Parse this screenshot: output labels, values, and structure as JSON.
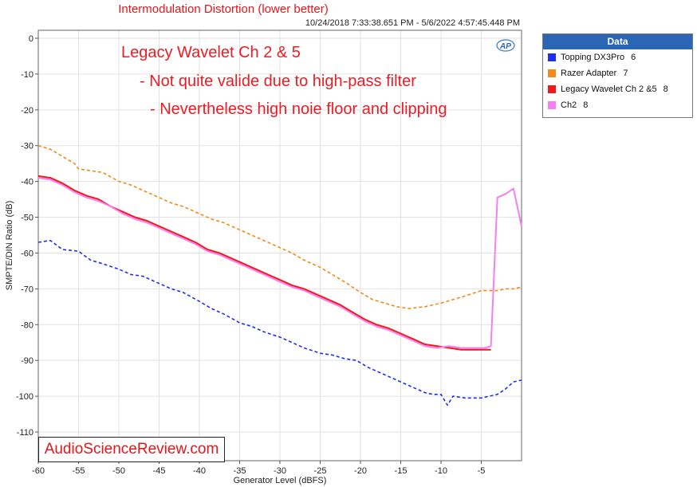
{
  "chart_data": {
    "type": "line",
    "title": "Intermodulation Distortion (lower better)",
    "subtitle": "10/24/2018 7:33:38.651 PM - 5/6/2022 4:57:45.448 PM",
    "xlabel": "Generator Level (dBFS)",
    "ylabel": "SMPTE/DIN Ratio (dB)",
    "xlim": [
      -60,
      0
    ],
    "ylim": [
      -115,
      2
    ],
    "xticks": [
      "-60",
      "-55",
      "-50",
      "-45",
      "-40",
      "-35",
      "-30",
      "-25",
      "-20",
      "-15",
      "-10",
      "-5"
    ],
    "yticks": [
      "0",
      "-10",
      "-20",
      "-30",
      "-40",
      "-50",
      "-60",
      "-70",
      "-80",
      "-90",
      "-100",
      "-110"
    ],
    "grid": true,
    "legend_title": "Data",
    "legend_placement": "right",
    "annotations": [
      "Legacy Wavelet Ch 2 & 5",
      "- Not quite valide due to high-pass filter",
      "- Nevertheless high noie floor and clipping"
    ],
    "logo": "AP",
    "watermark": "AudioScienceReview.com",
    "series": [
      {
        "name": "Topping DX3Pro",
        "num": "6",
        "color": "#1f2ff0",
        "dashed": true,
        "x": [
          -60,
          -58.5,
          -57,
          -55,
          -53.5,
          -52,
          -50,
          -48.5,
          -47,
          -45,
          -43.5,
          -42,
          -40,
          -38.5,
          -37,
          -35,
          -33.5,
          -32,
          -30,
          -28.5,
          -27,
          -25,
          -23.5,
          -22,
          -20.5,
          -19,
          -17,
          -15,
          -13.5,
          -12,
          -11,
          -10,
          -9.2,
          -8.5,
          -7,
          -5,
          -4,
          -3,
          -2,
          -1,
          0
        ],
        "y": [
          -57,
          -56.5,
          -59,
          -59.5,
          -62,
          -63,
          -64.5,
          -66,
          -66.5,
          -68.5,
          -70,
          -71,
          -73.5,
          -75.5,
          -77,
          -79.5,
          -80.5,
          -82,
          -83.5,
          -85,
          -86.5,
          -88,
          -88.5,
          -89.5,
          -90,
          -92,
          -94,
          -96,
          -97.5,
          -99,
          -99.5,
          -99.5,
          -102.5,
          -100,
          -100.5,
          -100.5,
          -100,
          -99.5,
          -98,
          -96,
          -95.5
        ]
      },
      {
        "name": "Razer Adapter",
        "num": "7",
        "color": "#f28a1a",
        "dashed": true,
        "x": [
          -60,
          -58.5,
          -57,
          -55.5,
          -55,
          -53.5,
          -52,
          -50,
          -48.5,
          -47,
          -45,
          -43.5,
          -42,
          -40,
          -38.5,
          -37,
          -35,
          -33.5,
          -32,
          -30,
          -28.5,
          -27,
          -25,
          -23.5,
          -22,
          -20,
          -18.5,
          -17,
          -15.5,
          -14,
          -12,
          -10,
          -8.5,
          -7,
          -5,
          -3,
          -2,
          -1,
          0
        ],
        "y": [
          -30,
          -31,
          -33,
          -35,
          -36.5,
          -37,
          -37.5,
          -40,
          -41,
          -42.5,
          -44.5,
          -46,
          -47,
          -49,
          -50.5,
          -51.5,
          -53.5,
          -55,
          -56.5,
          -58.5,
          -60,
          -62,
          -64,
          -66,
          -68,
          -71,
          -73,
          -74,
          -75,
          -75.5,
          -75,
          -74,
          -73,
          -72,
          -70.5,
          -70.5,
          -70,
          -70,
          -69.5
        ]
      },
      {
        "name": "Legacy Wavelet Ch 2 &5",
        "num": "8",
        "color": "#f01919",
        "dashed": false,
        "x": [
          -60,
          -58.5,
          -57,
          -55.5,
          -54,
          -52.5,
          -51,
          -49.5,
          -48,
          -46.5,
          -45,
          -43.5,
          -42,
          -40.5,
          -39,
          -37.5,
          -36,
          -34.5,
          -33,
          -31.5,
          -30,
          -28.5,
          -27,
          -25.5,
          -24,
          -22.5,
          -21,
          -19.5,
          -18,
          -16.5,
          -15,
          -13.5,
          -12,
          -10.5,
          -9,
          -7.5,
          -6,
          -4.5,
          -3.8
        ],
        "y": [
          -38.5,
          -39,
          -40.5,
          -42.5,
          -44,
          -45,
          -47,
          -48.5,
          -50,
          -51,
          -52.5,
          -54,
          -55.5,
          -57,
          -59,
          -60,
          -61.5,
          -63,
          -64.5,
          -66,
          -67.5,
          -69,
          -70,
          -71.5,
          -73,
          -74.5,
          -76.5,
          -78.5,
          -80,
          -81,
          -82.5,
          -84,
          -85.5,
          -86,
          -86.5,
          -87,
          -87,
          -87,
          -87
        ]
      },
      {
        "name": "Ch2",
        "num": "8",
        "color": "#f77ef2",
        "dashed": false,
        "x": [
          -60,
          -58.5,
          -57,
          -55.5,
          -54,
          -52.5,
          -51,
          -49.5,
          -48,
          -46.5,
          -45,
          -43.5,
          -42,
          -40.5,
          -39,
          -37.5,
          -36,
          -34.5,
          -33,
          -31.5,
          -30,
          -28.5,
          -27,
          -25.5,
          -24,
          -22.5,
          -21,
          -19.5,
          -18,
          -16.5,
          -15,
          -13.5,
          -12,
          -10.5,
          -9,
          -7.5,
          -6,
          -4.5,
          -3.8,
          -3,
          -2,
          -1,
          0
        ],
        "y": [
          -39,
          -39.5,
          -41,
          -43,
          -44.5,
          -45.5,
          -47,
          -49,
          -50.5,
          -51.5,
          -53,
          -54.5,
          -56,
          -57.5,
          -59.5,
          -60.5,
          -62,
          -63.5,
          -65,
          -66.5,
          -68,
          -69.5,
          -70.5,
          -72,
          -73.5,
          -75,
          -77,
          -79,
          -80.5,
          -81.5,
          -83,
          -84.5,
          -86,
          -86.5,
          -86,
          -86.5,
          -86.5,
          -86.5,
          -86,
          -44.5,
          -43.5,
          -42,
          -52.5
        ]
      }
    ]
  }
}
